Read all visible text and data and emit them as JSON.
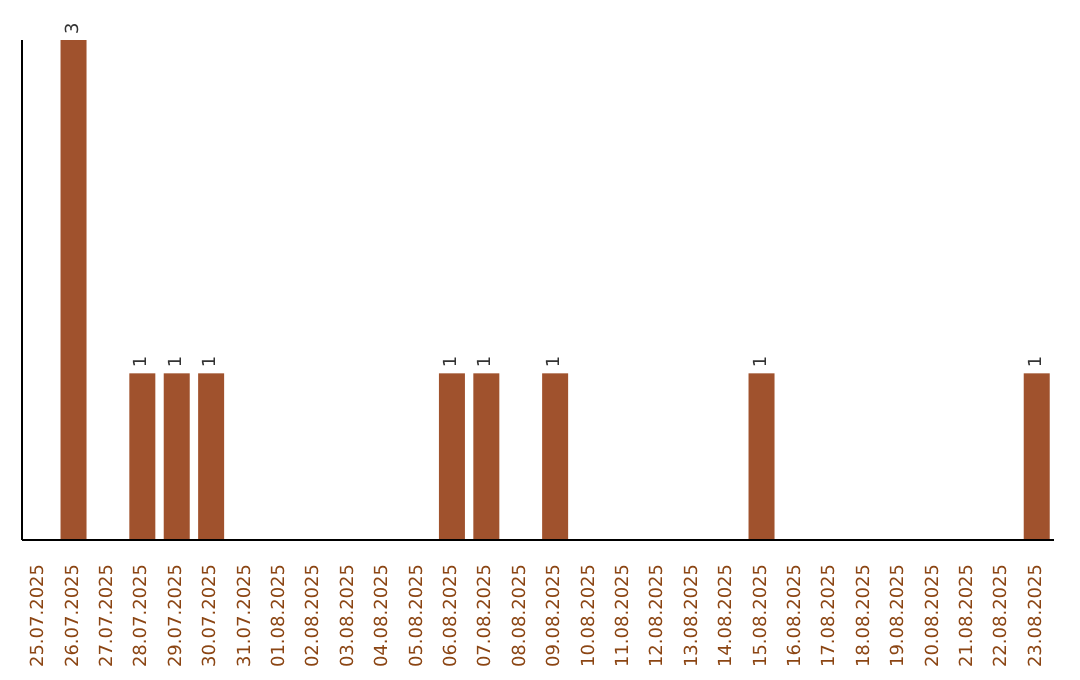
{
  "chart_data": {
    "type": "bar",
    "categories": [
      "25.07.2025",
      "26.07.2025",
      "27.07.2025",
      "28.07.2025",
      "29.07.2025",
      "30.07.2025",
      "31.07.2025",
      "01.08.2025",
      "02.08.2025",
      "03.08.2025",
      "04.08.2025",
      "05.08.2025",
      "06.08.2025",
      "07.08.2025",
      "08.08.2025",
      "09.08.2025",
      "10.08.2025",
      "11.08.2025",
      "12.08.2025",
      "13.08.2025",
      "14.08.2025",
      "15.08.2025",
      "16.08.2025",
      "17.08.2025",
      "18.08.2025",
      "19.08.2025",
      "20.08.2025",
      "21.08.2025",
      "22.08.2025",
      "23.08.2025"
    ],
    "series": [
      {
        "color": "#a0522d",
        "values": [
          0,
          3,
          0,
          1,
          1,
          1,
          0,
          0,
          0,
          0,
          0,
          0,
          1,
          1,
          0,
          1,
          0,
          0,
          0,
          0,
          0,
          1,
          0,
          0,
          0,
          0,
          0,
          0,
          0,
          1
        ],
        "value_labels": [
          null,
          "3",
          null,
          "1",
          "1",
          "1",
          null,
          null,
          null,
          null,
          null,
          null,
          "1",
          "1",
          null,
          "1",
          null,
          null,
          null,
          null,
          null,
          "1",
          null,
          null,
          null,
          null,
          null,
          null,
          null,
          "1"
        ]
      }
    ],
    "ylim": [
      0,
      3
    ],
    "tick_labels": "x",
    "grid": false,
    "legend": false
  }
}
